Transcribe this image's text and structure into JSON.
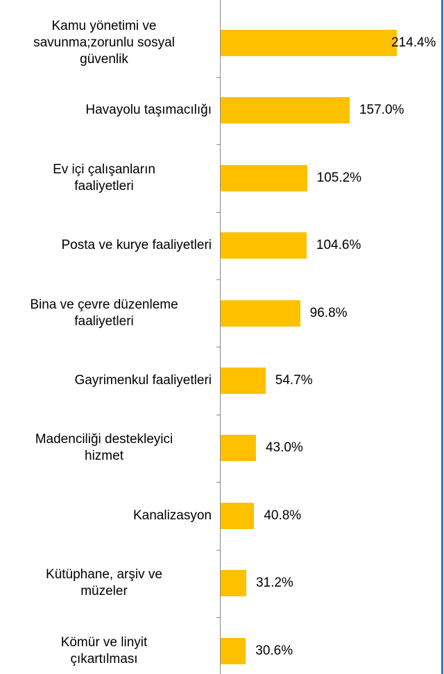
{
  "chart_data": {
    "type": "bar",
    "orientation": "horizontal",
    "color": "#ffc000",
    "categories": [
      "Kamu yönetimi ve\nsavunma;zorunlu sosyal\ngüvenlik",
      "Havayolu taşımacılığı",
      "Ev içi çalışanların\nfaaliyetleri",
      "Posta ve kurye faaliyetleri",
      "Bina ve çevre düzenleme\nfaaliyetleri",
      "Gayrimenkul faaliyetleri",
      "Madenciliği destekleyici\nhizmet",
      "Kanalizasyon",
      "Kütüphane, arşiv ve\nmüzeler",
      "Kömür ve linyit\nçıkartılması"
    ],
    "values": [
      214.4,
      157.0,
      105.2,
      104.6,
      96.8,
      54.7,
      43.0,
      40.8,
      31.2,
      30.6
    ],
    "value_labels": [
      "214.4%",
      "157.0%",
      "105.2%",
      "104.6%",
      "96.8%",
      "54.7%",
      "43.0%",
      "40.8%",
      "31.2%",
      "30.6%"
    ]
  }
}
